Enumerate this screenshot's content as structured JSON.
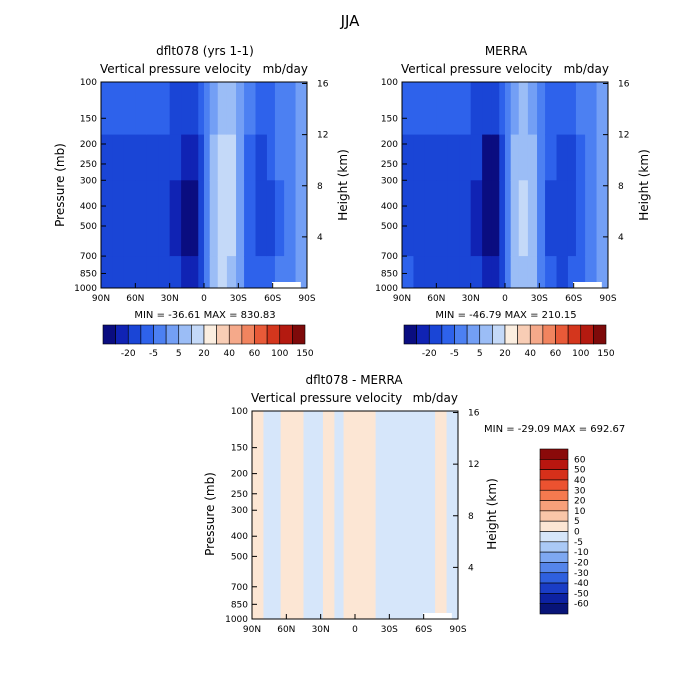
{
  "figure_title": "JJA",
  "chart_data": [
    {
      "type": "heatmap",
      "title": "dflt078 (yrs 1-1)",
      "subtitle_left": "Vertical pressure velocity",
      "subtitle_right": "mb/day",
      "xlabel": "",
      "ylabel": "Pressure (mb)",
      "ylabel_right": "Height (km)",
      "x_ticks": [
        "90N",
        "60N",
        "30N",
        "0",
        "30S",
        "60S",
        "90S"
      ],
      "y_ticks": [
        "100",
        "150",
        "200",
        "250",
        "300",
        "400",
        "500",
        "700",
        "850",
        "1000"
      ],
      "y_right_ticks": [
        "16",
        "12",
        "8",
        "4"
      ],
      "y_scale": "log",
      "ylim": [
        1000,
        100
      ],
      "stats": "MIN = -36.61   MAX = 830.83",
      "colorbar_labels": [
        "-20",
        "-5",
        "5",
        "20",
        "40",
        "60",
        "100",
        "150"
      ],
      "colorbar_colors": [
        "#0a0d80",
        "#1023b4",
        "#1a45d6",
        "#2e62eb",
        "#4c80f2",
        "#739ff5",
        "#9bbdf6",
        "#c4d9f8",
        "#fbeee0",
        "#f8cdb5",
        "#f5a98a",
        "#f1845f",
        "#e85a38",
        "#d4361d",
        "#b41a10",
        "#7e0a0a"
      ],
      "bands": [
        {
          "lat": 90,
          "value": -12
        },
        {
          "lat": 80,
          "value": -16
        },
        {
          "lat": 70,
          "value": -18
        },
        {
          "lat": 60,
          "value": -20
        },
        {
          "lat": 50,
          "value": -16
        },
        {
          "lat": 40,
          "value": -14
        },
        {
          "lat": 30,
          "value": -18
        },
        {
          "lat": 20,
          "value": -25
        },
        {
          "lat": 12,
          "value": -36
        },
        {
          "lat": 5,
          "value": -28
        },
        {
          "lat": 0,
          "value": -8
        },
        {
          "lat": -5,
          "value": 5
        },
        {
          "lat": -12,
          "value": 12
        },
        {
          "lat": -20,
          "value": 15
        },
        {
          "lat": -28,
          "value": 10
        },
        {
          "lat": -35,
          "value": -5
        },
        {
          "lat": -45,
          "value": -12
        },
        {
          "lat": -55,
          "value": -14
        },
        {
          "lat": -62,
          "value": -8
        },
        {
          "lat": -70,
          "value": -3
        },
        {
          "lat": -80,
          "value": 2
        },
        {
          "lat": -90,
          "value": 0
        }
      ]
    },
    {
      "type": "heatmap",
      "title": "MERRA",
      "subtitle_left": "Vertical pressure velocity",
      "subtitle_right": "mb/day",
      "xlabel": "",
      "ylabel": "",
      "ylabel_right": "Height (km)",
      "x_ticks": [
        "90N",
        "60N",
        "30N",
        "0",
        "30S",
        "60S",
        "90S"
      ],
      "y_ticks": [
        "100",
        "150",
        "200",
        "250",
        "300",
        "400",
        "500",
        "700",
        "850",
        "1000"
      ],
      "y_right_ticks": [
        "16",
        "12",
        "8",
        "4"
      ],
      "y_scale": "log",
      "ylim": [
        1000,
        100
      ],
      "stats": "MIN = -46.79   MAX = 210.15",
      "colorbar_labels": [
        "-20",
        "-5",
        "5",
        "20",
        "40",
        "60",
        "100",
        "150"
      ],
      "colorbar_colors": [
        "#0a0d80",
        "#1023b4",
        "#1a45d6",
        "#2e62eb",
        "#4c80f2",
        "#739ff5",
        "#9bbdf6",
        "#c4d9f8",
        "#fbeee0",
        "#f8cdb5",
        "#f5a98a",
        "#f1845f",
        "#e85a38",
        "#d4361d",
        "#b41a10",
        "#7e0a0a"
      ],
      "bands": [
        {
          "lat": 90,
          "value": -10
        },
        {
          "lat": 80,
          "value": -14
        },
        {
          "lat": 70,
          "value": -16
        },
        {
          "lat": 60,
          "value": -18
        },
        {
          "lat": 50,
          "value": -15
        },
        {
          "lat": 40,
          "value": -14
        },
        {
          "lat": 30,
          "value": -18
        },
        {
          "lat": 20,
          "value": -26
        },
        {
          "lat": 12,
          "value": -46
        },
        {
          "lat": 5,
          "value": -30
        },
        {
          "lat": 0,
          "value": -8
        },
        {
          "lat": -5,
          "value": 4
        },
        {
          "lat": -12,
          "value": 10
        },
        {
          "lat": -20,
          "value": 12
        },
        {
          "lat": -28,
          "value": 6
        },
        {
          "lat": -35,
          "value": -6
        },
        {
          "lat": -45,
          "value": -14
        },
        {
          "lat": -55,
          "value": -16
        },
        {
          "lat": -62,
          "value": -10
        },
        {
          "lat": -70,
          "value": -4
        },
        {
          "lat": -80,
          "value": 1
        },
        {
          "lat": -90,
          "value": 0
        }
      ]
    },
    {
      "type": "heatmap",
      "title": "dflt078 - MERRA",
      "subtitle_left": "Vertical pressure velocity",
      "subtitle_right": "mb/day",
      "xlabel": "",
      "ylabel": "Pressure (mb)",
      "ylabel_right": "Height (km)",
      "x_ticks": [
        "90N",
        "60N",
        "30N",
        "0",
        "30S",
        "60S",
        "90S"
      ],
      "y_ticks": [
        "100",
        "150",
        "200",
        "250",
        "300",
        "400",
        "500",
        "700",
        "850",
        "1000"
      ],
      "y_right_ticks": [
        "16",
        "12",
        "8",
        "4"
      ],
      "y_scale": "log",
      "ylim": [
        1000,
        100
      ],
      "stats": "MIN = -29.09   MAX = 692.67",
      "colorbar_labels": [
        "60",
        "50",
        "40",
        "30",
        "20",
        "10",
        "5",
        "0",
        "-5",
        "-10",
        "-20",
        "-30",
        "-40",
        "-50",
        "-60"
      ],
      "colorbar_colors": [
        "#8a0a0a",
        "#b8160f",
        "#d6301a",
        "#ec5230",
        "#f57a4f",
        "#f7a07a",
        "#f9c6a8",
        "#fce6d4",
        "#d6e6fa",
        "#aac9f6",
        "#7ea8f1",
        "#5585ea",
        "#2f60de",
        "#1a3dc6",
        "#0d22a2",
        "#081478"
      ],
      "bands": [
        {
          "lat": 90,
          "value": 2
        },
        {
          "lat": 80,
          "value": 1
        },
        {
          "lat": 72,
          "value": -3
        },
        {
          "lat": 65,
          "value": 2
        },
        {
          "lat": 55,
          "value": 2
        },
        {
          "lat": 45,
          "value": 1
        },
        {
          "lat": 35,
          "value": -2
        },
        {
          "lat": 28,
          "value": 1
        },
        {
          "lat": 18,
          "value": 3
        },
        {
          "lat": 10,
          "value": -3
        },
        {
          "lat": 3,
          "value": 6
        },
        {
          "lat": -3,
          "value": 4
        },
        {
          "lat": -10,
          "value": 1
        },
        {
          "lat": -18,
          "value": 3
        },
        {
          "lat": -26,
          "value": -3
        },
        {
          "lat": -34,
          "value": 2
        },
        {
          "lat": -44,
          "value": -3
        },
        {
          "lat": -55,
          "value": 1
        },
        {
          "lat": -62,
          "value": -2
        },
        {
          "lat": -70,
          "value": 1
        },
        {
          "lat": -80,
          "value": 0
        },
        {
          "lat": -90,
          "value": 0
        }
      ]
    }
  ]
}
